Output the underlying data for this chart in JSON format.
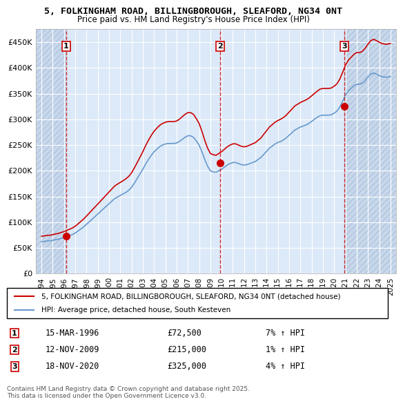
{
  "title_line1": "5, FOLKINGHAM ROAD, BILLINGBOROUGH, SLEAFORD, NG34 0NT",
  "title_line2": "Price paid vs. HM Land Registry's House Price Index (HPI)",
  "ylabel": "",
  "background_color": "#dce9f8",
  "plot_bg_color": "#dce9f8",
  "hatch_color": "#c0d0e8",
  "grid_color": "#ffffff",
  "sale_line_color": "#cc0000",
  "hpi_line_color": "#6699cc",
  "vline_color": "#cc0000",
  "marker_color": "#cc0000",
  "ylim": [
    0,
    475000
  ],
  "yticks": [
    0,
    50000,
    100000,
    150000,
    200000,
    250000,
    300000,
    350000,
    400000,
    450000
  ],
  "ytick_labels": [
    "£0",
    "£50K",
    "£100K",
    "£150K",
    "£200K",
    "£250K",
    "£300K",
    "£350K",
    "£400K",
    "£450K"
  ],
  "xlim_start": 1993.5,
  "xlim_end": 2025.5,
  "xticks": [
    1994,
    1995,
    1996,
    1997,
    1998,
    1999,
    2000,
    2001,
    2002,
    2003,
    2004,
    2005,
    2006,
    2007,
    2008,
    2009,
    2010,
    2011,
    2012,
    2013,
    2014,
    2015,
    2016,
    2017,
    2018,
    2019,
    2020,
    2021,
    2022,
    2023,
    2024,
    2025
  ],
  "sale_dates": [
    1996.2,
    2009.87,
    2020.88
  ],
  "sale_prices": [
    72500,
    215000,
    325000
  ],
  "sale_labels": [
    "1",
    "2",
    "3"
  ],
  "transactions": [
    {
      "label": "1",
      "date": "15-MAR-1996",
      "price": "£72,500",
      "hpi": "7% ↑ HPI"
    },
    {
      "label": "2",
      "date": "12-NOV-2009",
      "price": "£215,000",
      "hpi": "1% ↑ HPI"
    },
    {
      "label": "3",
      "date": "18-NOV-2020",
      "price": "£325,000",
      "hpi": "4% ↑ HPI"
    }
  ],
  "legend_sale": "5, FOLKINGHAM ROAD, BILLINGBOROUGH, SLEAFORD, NG34 0NT (detached house)",
  "legend_hpi": "HPI: Average price, detached house, South Kesteven",
  "footer": "Contains HM Land Registry data © Crown copyright and database right 2025.\nThis data is licensed under the Open Government Licence v3.0.",
  "hpi_data_x": [
    1994,
    1994.25,
    1994.5,
    1994.75,
    1995,
    1995.25,
    1995.5,
    1995.75,
    1996,
    1996.25,
    1996.5,
    1996.75,
    1997,
    1997.25,
    1997.5,
    1997.75,
    1998,
    1998.25,
    1998.5,
    1998.75,
    1999,
    1999.25,
    1999.5,
    1999.75,
    2000,
    2000.25,
    2000.5,
    2000.75,
    2001,
    2001.25,
    2001.5,
    2001.75,
    2002,
    2002.25,
    2002.5,
    2002.75,
    2003,
    2003.25,
    2003.5,
    2003.75,
    2004,
    2004.25,
    2004.5,
    2004.75,
    2005,
    2005.25,
    2005.5,
    2005.75,
    2006,
    2006.25,
    2006.5,
    2006.75,
    2007,
    2007.25,
    2007.5,
    2007.75,
    2008,
    2008.25,
    2008.5,
    2008.75,
    2009,
    2009.25,
    2009.5,
    2009.75,
    2010,
    2010.25,
    2010.5,
    2010.75,
    2011,
    2011.25,
    2011.5,
    2011.75,
    2012,
    2012.25,
    2012.5,
    2012.75,
    2013,
    2013.25,
    2013.5,
    2013.75,
    2014,
    2014.25,
    2014.5,
    2014.75,
    2015,
    2015.25,
    2015.5,
    2015.75,
    2016,
    2016.25,
    2016.5,
    2016.75,
    2017,
    2017.25,
    2017.5,
    2017.75,
    2018,
    2018.25,
    2018.5,
    2018.75,
    2019,
    2019.25,
    2019.5,
    2019.75,
    2020,
    2020.25,
    2020.5,
    2020.75,
    2021,
    2021.25,
    2021.5,
    2021.75,
    2022,
    2022.25,
    2022.5,
    2022.75,
    2023,
    2023.25,
    2023.5,
    2023.75,
    2024,
    2024.25,
    2024.5,
    2024.75,
    2025
  ],
  "hpi_data_y": [
    62000,
    63000,
    63500,
    64000,
    65000,
    66000,
    67000,
    68500,
    70000,
    72000,
    74000,
    76000,
    79000,
    83000,
    87000,
    91000,
    96000,
    101000,
    106000,
    111000,
    116000,
    121000,
    126000,
    131000,
    136000,
    141000,
    146000,
    149000,
    152000,
    155000,
    158000,
    162000,
    168000,
    176000,
    185000,
    194000,
    203000,
    213000,
    222000,
    230000,
    237000,
    242000,
    247000,
    250000,
    252000,
    253000,
    253000,
    253000,
    254000,
    257000,
    261000,
    265000,
    268000,
    268000,
    265000,
    258000,
    250000,
    237000,
    222000,
    209000,
    200000,
    198000,
    197000,
    200000,
    203000,
    207000,
    211000,
    214000,
    216000,
    216000,
    214000,
    212000,
    211000,
    212000,
    214000,
    216000,
    218000,
    222000,
    226000,
    232000,
    238000,
    244000,
    248000,
    252000,
    255000,
    257000,
    260000,
    264000,
    269000,
    274000,
    279000,
    282000,
    285000,
    287000,
    289000,
    292000,
    296000,
    300000,
    304000,
    307000,
    308000,
    308000,
    308000,
    309000,
    312000,
    316000,
    324000,
    335000,
    347000,
    355000,
    360000,
    365000,
    368000,
    368000,
    370000,
    375000,
    382000,
    388000,
    390000,
    388000,
    385000,
    383000,
    382000,
    382000,
    383000
  ],
  "sale_hpi_data_x": [
    1994,
    1994.25,
    1994.5,
    1994.75,
    1995,
    1995.25,
    1995.5,
    1995.75,
    1996,
    1996.25,
    1996.5,
    1996.75,
    1997,
    1997.25,
    1997.5,
    1997.75,
    1998,
    1998.25,
    1998.5,
    1998.75,
    1999,
    1999.25,
    1999.5,
    1999.75,
    2000,
    2000.25,
    2000.5,
    2000.75,
    2001,
    2001.25,
    2001.5,
    2001.75,
    2002,
    2002.25,
    2002.5,
    2002.75,
    2003,
    2003.25,
    2003.5,
    2003.75,
    2004,
    2004.25,
    2004.5,
    2004.75,
    2005,
    2005.25,
    2005.5,
    2005.75,
    2006,
    2006.25,
    2006.5,
    2006.75,
    2007,
    2007.25,
    2007.5,
    2007.75,
    2008,
    2008.25,
    2008.5,
    2008.75,
    2009,
    2009.25,
    2009.5,
    2009.75,
    2010,
    2010.25,
    2010.5,
    2010.75,
    2011,
    2011.25,
    2011.5,
    2011.75,
    2012,
    2012.25,
    2012.5,
    2012.75,
    2013,
    2013.25,
    2013.5,
    2013.75,
    2014,
    2014.25,
    2014.5,
    2014.75,
    2015,
    2015.25,
    2015.5,
    2015.75,
    2016,
    2016.25,
    2016.5,
    2016.75,
    2017,
    2017.25,
    2017.5,
    2017.75,
    2018,
    2018.25,
    2018.5,
    2018.75,
    2019,
    2019.25,
    2019.5,
    2019.75,
    2020,
    2020.25,
    2020.5,
    2020.75,
    2021,
    2021.25,
    2021.5,
    2021.75,
    2022,
    2022.25,
    2022.5,
    2022.75,
    2023,
    2023.25,
    2023.5,
    2023.75,
    2024,
    2024.25,
    2024.5,
    2024.75,
    2025
  ],
  "sale_indexed_y": [
    72500,
    73600,
    74200,
    74800,
    75900,
    77100,
    78300,
    80000,
    81800,
    84100,
    86500,
    88900,
    92300,
    96900,
    101600,
    106300,
    112100,
    117900,
    123800,
    129600,
    135400,
    141200,
    147100,
    152900,
    158800,
    164600,
    170400,
    174100,
    177400,
    180700,
    184500,
    189100,
    196100,
    205500,
    216000,
    226500,
    237000,
    248900,
    259300,
    268700,
    276900,
    282800,
    288400,
    291900,
    294300,
    295500,
    295500,
    295500,
    296700,
    300200,
    304900,
    309600,
    312900,
    312900,
    309600,
    301300,
    292000,
    276900,
    259300,
    244200,
    233600,
    231200,
    230000,
    233600,
    237000,
    241800,
    246500,
    249900,
    252300,
    252300,
    249900,
    247600,
    246500,
    247600,
    249900,
    252300,
    254700,
    259300,
    263900,
    271100,
    277900,
    285100,
    289700,
    294300,
    297700,
    300200,
    303600,
    308200,
    314100,
    320000,
    325900,
    329300,
    332700,
    335200,
    337700,
    341100,
    345600,
    350200,
    354700,
    358700,
    359900,
    359900,
    359900,
    360900,
    364300,
    369000,
    378200,
    391300,
    405100,
    414600,
    420300,
    426200,
    429600,
    429600,
    432000,
    438000,
    446100,
    453000,
    455400,
    453000,
    449700,
    447300,
    446100,
    446100,
    447300
  ],
  "pre_sale1_end": 1996.2,
  "between_sale1_2_start": 1996.2,
  "between_sale1_2_end": 2009.87,
  "between_sale2_3_start": 2009.87,
  "between_sale2_3_end": 2020.88,
  "post_sale3_start": 2020.88
}
